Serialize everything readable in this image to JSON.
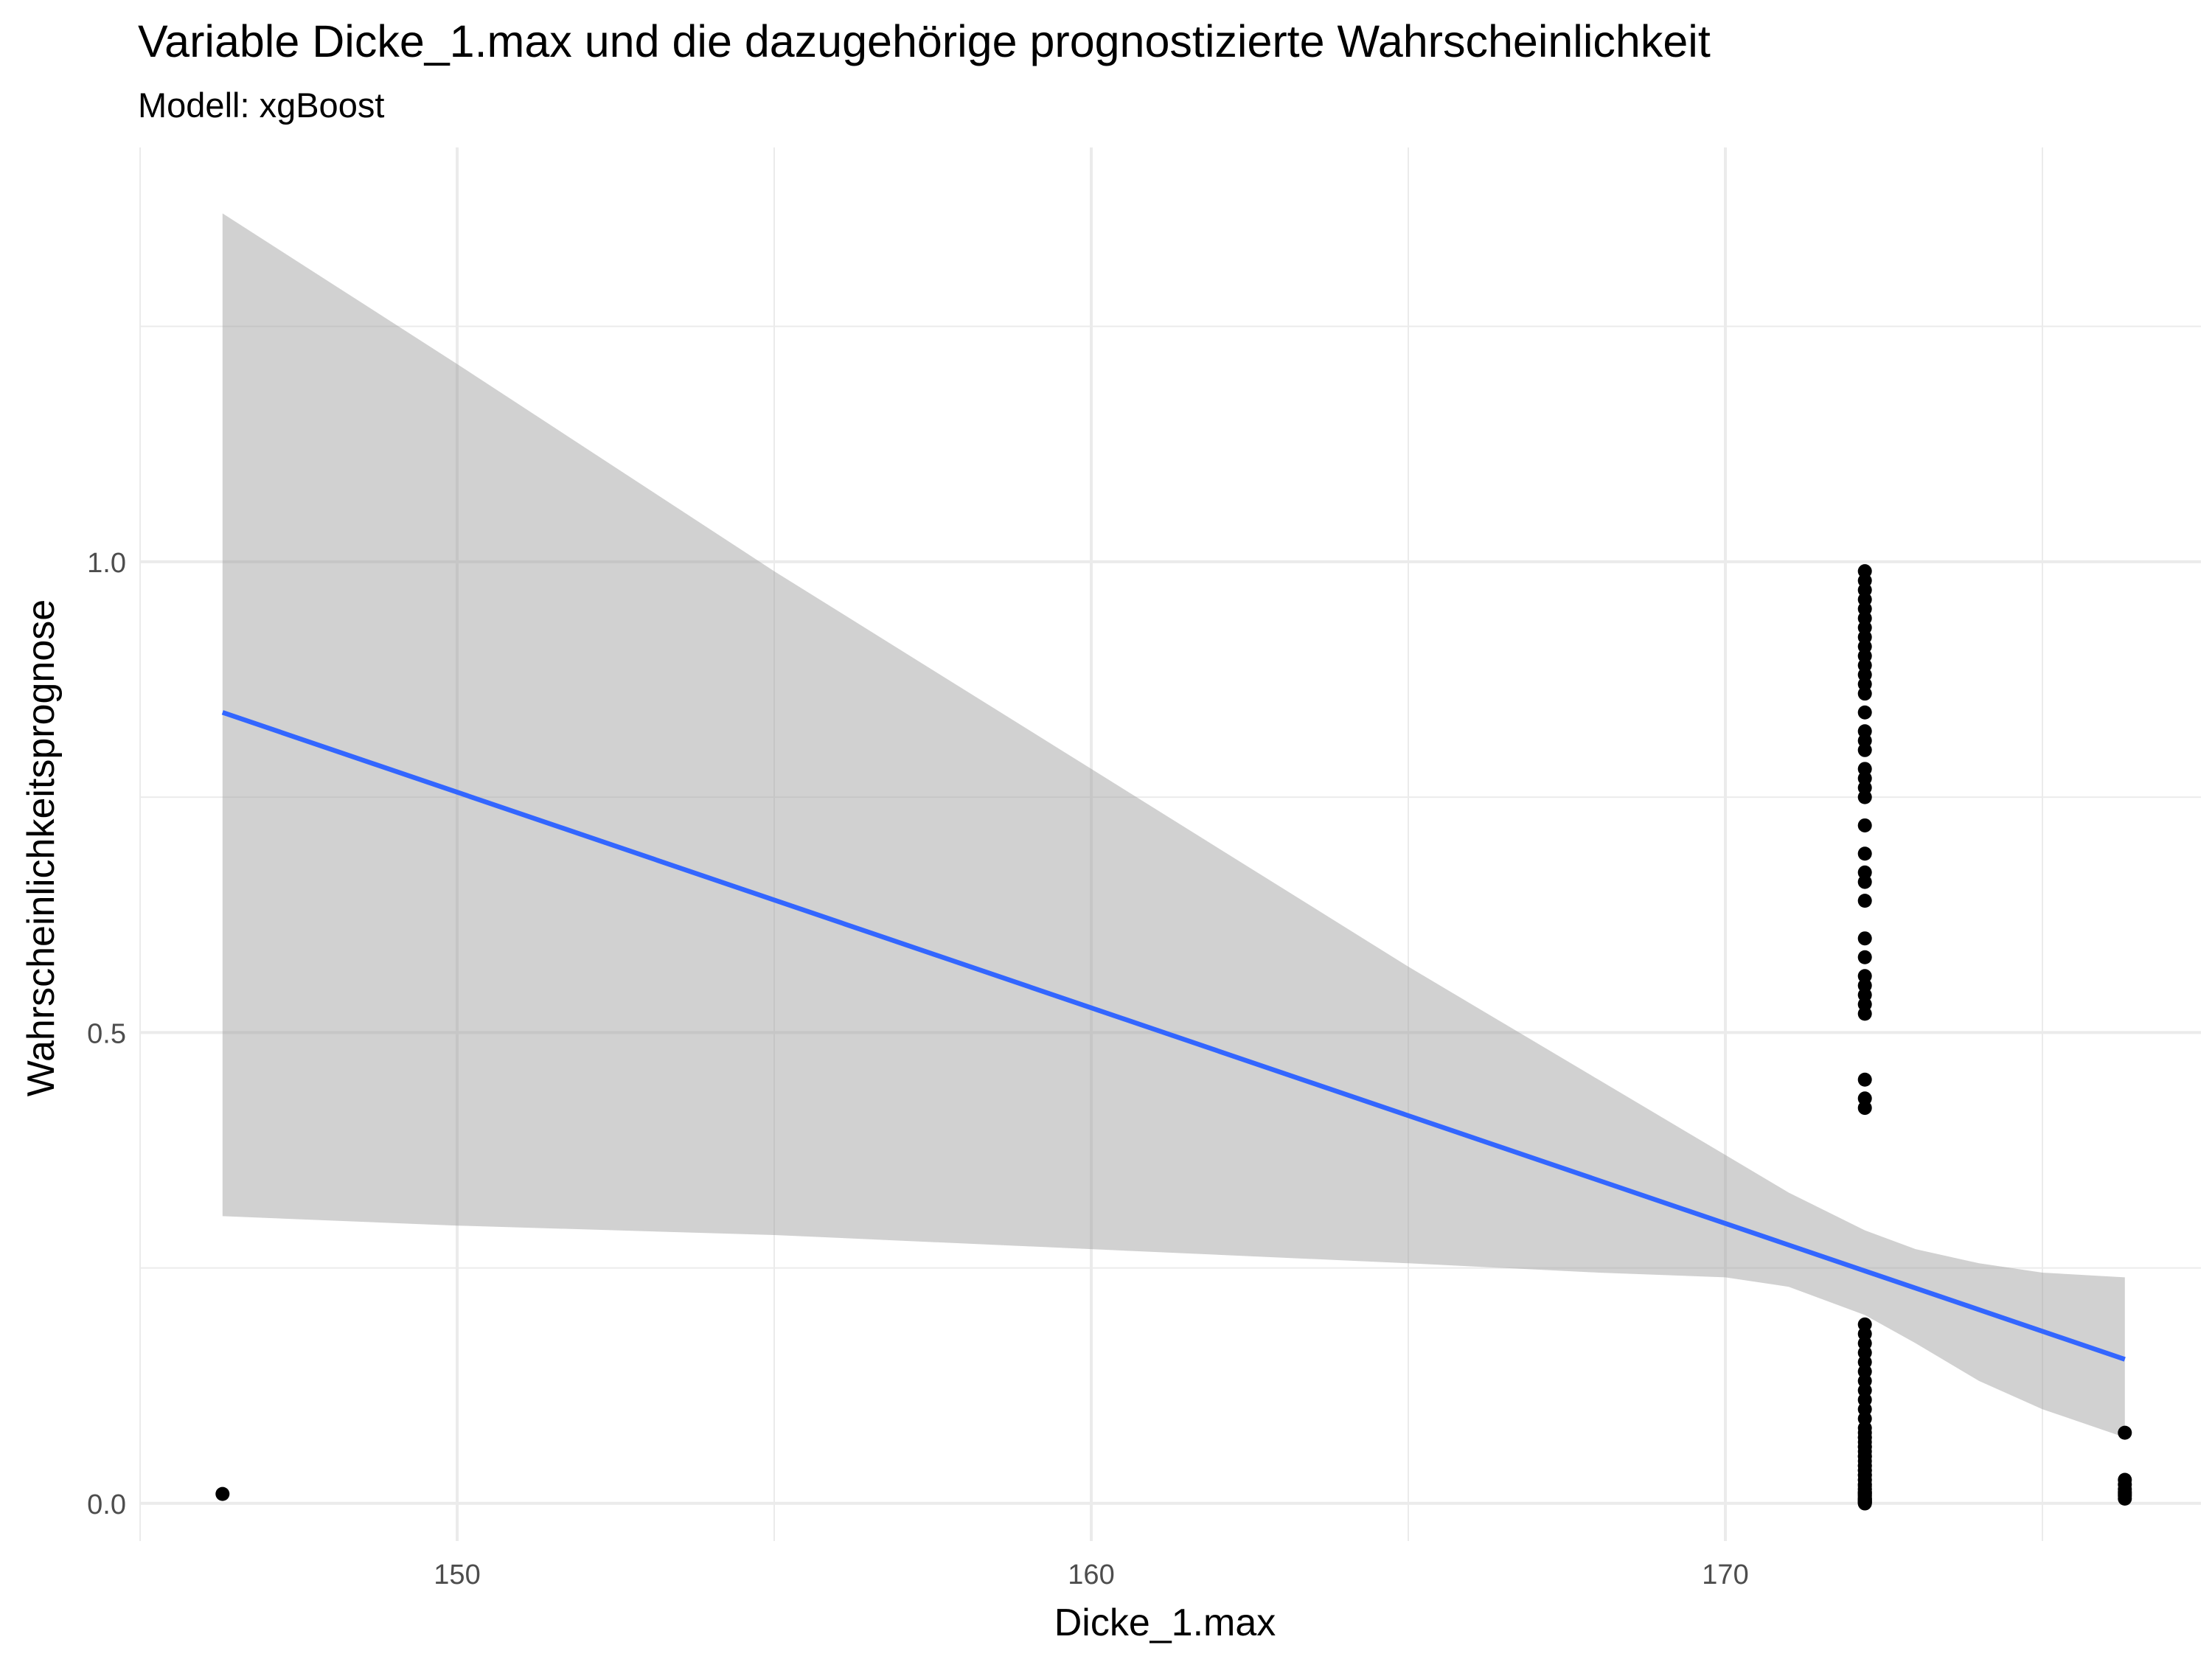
{
  "chart_data": {
    "type": "scatter",
    "title": "Variable Dicke_1.max und die dazugehörige prognostizierte Wahrscheinlichkeit",
    "subtitle": "Modell: xgBoost",
    "xlabel": "Dicke_1.max",
    "ylabel": "Wahrscheinlichkeitsprognose",
    "xlim": [
      145,
      177.5
    ],
    "ylim": [
      -0.04,
      1.44
    ],
    "x_ticks": [
      150,
      160,
      170
    ],
    "x_tick_labels": [
      "150",
      "160",
      "170"
    ],
    "y_ticks": [
      0.0,
      0.5,
      1.0
    ],
    "y_tick_labels": [
      "0.0",
      "0.5",
      "1.0"
    ],
    "grid": true,
    "colors": {
      "points": "#000000",
      "fit_line": "#3366ff",
      "ribbon": "#999999"
    },
    "series": [
      {
        "type": "scatter",
        "x": [
          146.3,
          172.2,
          172.2,
          172.2,
          172.2,
          172.2,
          172.2,
          172.2,
          172.2,
          172.2,
          172.2,
          172.2,
          172.2,
          172.2,
          172.2,
          172.2,
          172.2,
          172.2,
          172.2,
          172.2,
          172.2,
          172.2,
          172.2,
          172.2,
          172.2,
          172.2,
          172.2,
          172.2,
          172.2,
          172.2,
          172.2,
          172.2,
          172.2,
          172.2,
          172.2,
          172.2,
          172.2,
          172.2,
          172.2,
          172.2,
          172.2,
          172.2,
          172.2,
          172.2,
          172.2,
          172.2,
          172.2,
          172.2,
          172.2,
          172.2,
          172.2,
          172.2,
          172.2,
          172.2,
          172.2,
          172.2,
          172.2,
          172.2,
          172.2,
          172.2,
          172.2,
          172.2,
          172.2,
          172.2,
          172.2,
          172.2,
          172.2,
          172.2,
          172.2,
          172.2,
          172.2,
          172.2,
          172.2,
          172.2,
          172.2,
          172.2,
          172.2,
          172.2,
          172.2,
          172.2,
          172.2,
          172.2,
          172.2,
          172.2,
          172.2,
          172.2,
          172.2,
          172.2,
          172.2,
          172.2,
          172.2,
          172.2,
          172.2,
          176.3,
          176.3,
          176.3,
          176.3,
          176.3,
          176.3,
          176.3,
          176.3
        ],
        "y": [
          0.01,
          0.99,
          0.98,
          0.97,
          0.96,
          0.95,
          0.94,
          0.93,
          0.92,
          0.91,
          0.9,
          0.89,
          0.88,
          0.87,
          0.86,
          0.84,
          0.82,
          0.81,
          0.8,
          0.78,
          0.77,
          0.76,
          0.75,
          0.72,
          0.69,
          0.67,
          0.66,
          0.64,
          0.6,
          0.58,
          0.56,
          0.55,
          0.54,
          0.53,
          0.52,
          0.45,
          0.43,
          0.42,
          0.19,
          0.18,
          0.17,
          0.16,
          0.15,
          0.14,
          0.13,
          0.12,
          0.11,
          0.1,
          0.09,
          0.08,
          0.075,
          0.07,
          0.065,
          0.06,
          0.055,
          0.05,
          0.045,
          0.04,
          0.035,
          0.03,
          0.025,
          0.02,
          0.015,
          0.012,
          0.01,
          0.008,
          0.006,
          0.005,
          0.004,
          0.003,
          0.002,
          0.001,
          0.0,
          0.06,
          0.04,
          0.03,
          0.02,
          0.015,
          0.01,
          0.005,
          0.003,
          0.07,
          0.05,
          0.035,
          0.025,
          0.018,
          0.012,
          0.008,
          0.004,
          0.002,
          0.001,
          0.0,
          0.011,
          0.075,
          0.025,
          0.02,
          0.015,
          0.012,
          0.01,
          0.008,
          0.005
        ]
      },
      {
        "type": "line",
        "x": [
          146.3,
          176.3
        ],
        "y": [
          0.84,
          0.153
        ]
      },
      {
        "type": "area",
        "x": [
          146.3,
          150,
          155,
          160,
          165,
          168,
          170,
          171,
          172.2,
          173,
          174,
          175,
          176.3
        ],
        "upper": [
          1.37,
          1.21,
          0.99,
          0.78,
          0.57,
          0.45,
          0.37,
          0.33,
          0.29,
          0.27,
          0.255,
          0.245,
          0.24
        ],
        "lower": [
          0.305,
          0.295,
          0.285,
          0.27,
          0.255,
          0.245,
          0.24,
          0.23,
          0.2,
          0.17,
          0.13,
          0.1,
          0.07
        ]
      }
    ]
  }
}
